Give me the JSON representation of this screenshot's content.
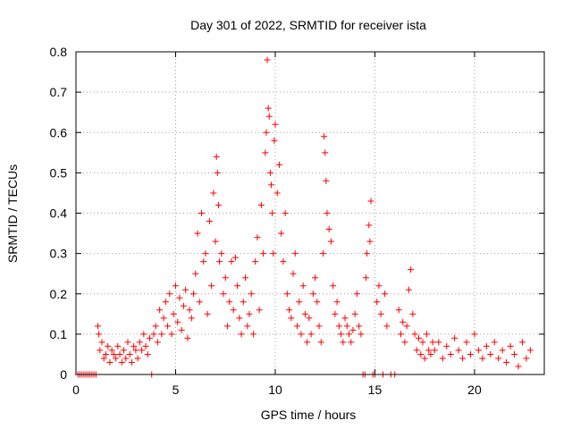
{
  "chart_data": {
    "type": "scatter",
    "title": "Day 301 of 2022, SRMTID for receiver ista",
    "xlabel": "GPS time / hours",
    "ylabel": "SRMTID / TECUs",
    "xlim": [
      0,
      23.5
    ],
    "ylim": [
      0,
      0.8
    ],
    "xticks": [
      0,
      5,
      10,
      15,
      20
    ],
    "yticks": [
      0,
      0.1,
      0.2,
      0.3,
      0.4,
      0.5,
      0.6,
      0.7,
      0.8
    ],
    "grid": true,
    "marker": "plus",
    "color": "#ff0000",
    "series": [
      {
        "name": "SRMTID",
        "x": [
          0.1,
          0.2,
          0.3,
          0.4,
          0.5,
          0.6,
          0.7,
          0.8,
          0.9,
          1.0,
          1.1,
          1.15,
          1.2,
          1.3,
          1.4,
          1.5,
          1.6,
          1.7,
          1.8,
          1.9,
          2.0,
          2.1,
          2.2,
          2.3,
          2.4,
          2.5,
          2.6,
          2.7,
          2.8,
          2.9,
          3.0,
          3.1,
          3.2,
          3.3,
          3.4,
          3.5,
          3.6,
          3.7,
          3.8,
          3.9,
          4.0,
          4.1,
          4.2,
          4.3,
          4.4,
          4.5,
          4.6,
          4.7,
          4.8,
          4.9,
          5.0,
          5.1,
          5.2,
          5.3,
          5.4,
          5.5,
          5.6,
          5.7,
          5.8,
          5.9,
          6.0,
          6.1,
          6.2,
          6.3,
          6.4,
          6.5,
          6.6,
          6.7,
          6.8,
          6.9,
          7.0,
          7.05,
          7.1,
          7.15,
          7.2,
          7.3,
          7.4,
          7.5,
          7.6,
          7.7,
          7.8,
          7.9,
          8.0,
          8.1,
          8.2,
          8.3,
          8.4,
          8.5,
          8.6,
          8.7,
          8.8,
          8.9,
          9.0,
          9.1,
          9.2,
          9.3,
          9.4,
          9.5,
          9.55,
          9.6,
          9.65,
          9.7,
          9.75,
          9.8,
          9.85,
          9.9,
          9.95,
          10.0,
          10.1,
          10.2,
          10.3,
          10.4,
          10.5,
          10.6,
          10.7,
          10.8,
          10.9,
          11.0,
          11.1,
          11.2,
          11.3,
          11.4,
          11.5,
          11.6,
          11.7,
          11.8,
          11.9,
          12.0,
          12.1,
          12.2,
          12.3,
          12.4,
          12.45,
          12.5,
          12.55,
          12.6,
          12.7,
          12.8,
          12.9,
          13.0,
          13.1,
          13.2,
          13.3,
          13.4,
          13.5,
          13.6,
          13.7,
          13.8,
          13.9,
          14.0,
          14.1,
          14.2,
          14.3,
          14.4,
          14.5,
          14.55,
          14.6,
          14.7,
          14.75,
          14.8,
          14.9,
          15.0,
          15.1,
          15.2,
          15.3,
          15.4,
          15.5,
          15.6,
          15.8,
          16.0,
          16.2,
          16.3,
          16.4,
          16.5,
          16.6,
          16.7,
          16.8,
          16.9,
          17.0,
          17.1,
          17.2,
          17.3,
          17.4,
          17.5,
          17.6,
          17.7,
          17.8,
          17.9,
          18.0,
          18.2,
          18.4,
          18.6,
          18.8,
          19.0,
          19.2,
          19.4,
          19.6,
          19.8,
          20.0,
          20.2,
          20.4,
          20.6,
          20.8,
          21.0,
          21.2,
          21.4,
          21.6,
          21.8,
          22.0,
          22.2,
          22.4,
          22.6,
          22.8
        ],
        "y": [
          0,
          0,
          0,
          0,
          0,
          0,
          0,
          0,
          0,
          0,
          0.12,
          0.1,
          0.06,
          0.08,
          0.04,
          0.05,
          0.07,
          0.03,
          0.06,
          0.05,
          0.04,
          0.07,
          0.05,
          0.03,
          0.06,
          0.04,
          0.08,
          0.05,
          0.03,
          0.07,
          0.06,
          0.04,
          0.08,
          0.06,
          0.1,
          0.07,
          0.05,
          0.09,
          0.0,
          0.1,
          0.12,
          0.08,
          0.16,
          0.1,
          0.14,
          0.18,
          0.12,
          0.2,
          0.1,
          0.15,
          0.22,
          0.13,
          0.19,
          0.11,
          0.17,
          0.21,
          0.09,
          0.16,
          0.14,
          0.2,
          0.25,
          0.35,
          0.18,
          0.4,
          0.28,
          0.3,
          0.15,
          0.38,
          0.22,
          0.45,
          0.33,
          0.54,
          0.5,
          0.42,
          0.28,
          0.3,
          0.2,
          0.24,
          0.12,
          0.18,
          0.28,
          0.16,
          0.29,
          0.22,
          0.14,
          0.1,
          0.18,
          0.24,
          0.12,
          0.15,
          0.2,
          0.1,
          0.28,
          0.34,
          0.16,
          0.42,
          0.3,
          0.55,
          0.6,
          0.78,
          0.66,
          0.64,
          0.5,
          0.47,
          0.4,
          0.3,
          0.58,
          0.62,
          0.45,
          0.52,
          0.35,
          0.28,
          0.4,
          0.2,
          0.16,
          0.14,
          0.25,
          0.3,
          0.12,
          0.18,
          0.1,
          0.22,
          0.15,
          0.08,
          0.14,
          0.1,
          0.2,
          0.24,
          0.18,
          0.12,
          0.08,
          0.3,
          0.59,
          0.55,
          0.48,
          0.4,
          0.36,
          0.33,
          0.22,
          0.15,
          0.18,
          0.12,
          0.1,
          0.08,
          0.14,
          0.12,
          0.1,
          0.08,
          0.11,
          0.15,
          0.2,
          0.12,
          0.1,
          0.0,
          0.0,
          0.24,
          0.3,
          0.37,
          0.33,
          0.43,
          0.0,
          0.0,
          0.18,
          0.22,
          0.15,
          0.0,
          0.2,
          0.12,
          0.0,
          0.0,
          0.16,
          0.1,
          0.13,
          0.08,
          0.12,
          0.21,
          0.26,
          0.15,
          0.1,
          0.06,
          0.09,
          0.05,
          0.08,
          0.04,
          0.1,
          0.06,
          0.05,
          0.08,
          0.06,
          0.08,
          0.04,
          0.07,
          0.05,
          0.09,
          0.06,
          0.04,
          0.08,
          0.05,
          0.1,
          0.06,
          0.04,
          0.07,
          0.05,
          0.08,
          0.04,
          0.06,
          0.03,
          0.07,
          0.05,
          0.02,
          0.08,
          0.04,
          0.06
        ]
      }
    ]
  }
}
